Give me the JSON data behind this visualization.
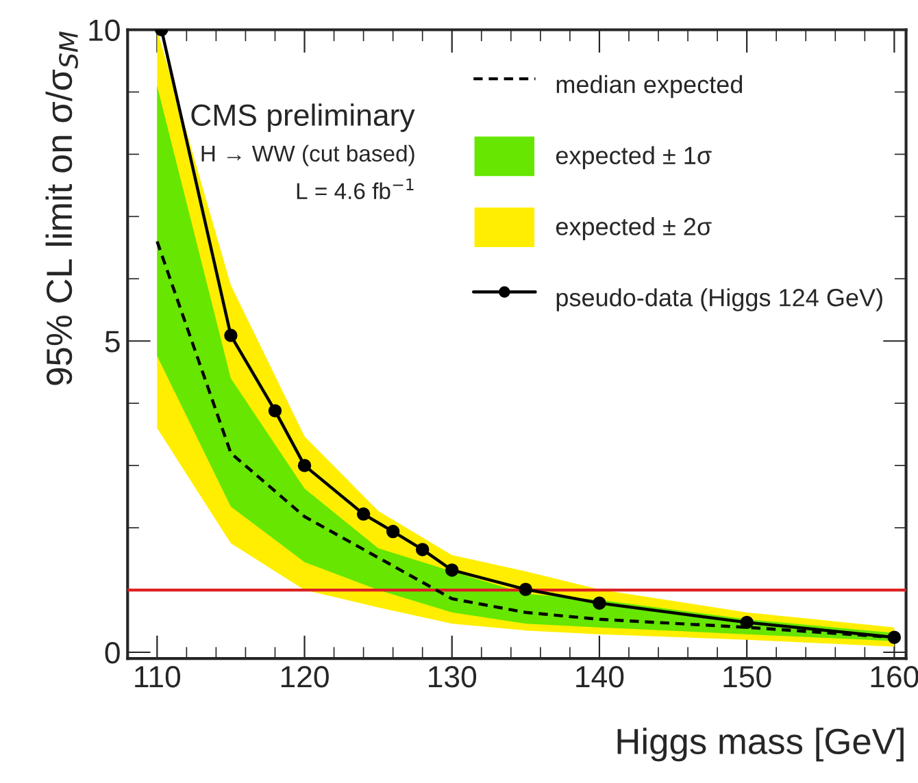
{
  "chart_data": {
    "type": "line",
    "xlabel": "Higgs mass [GeV]",
    "ylabel": "95% CL limit on σ/σ$_{SM}$",
    "xlim": [
      108,
      160.8
    ],
    "ylim": [
      -0.1,
      10
    ],
    "xticks": [
      110,
      120,
      130,
      140,
      150,
      160
    ],
    "yticks": [
      0,
      5,
      10
    ],
    "series": [
      {
        "name": "median expected",
        "color": "#000000",
        "line_style": "dashed",
        "marker": "none",
        "x": [
          110,
          115,
          120,
          125,
          130,
          135,
          140,
          150,
          160
        ],
        "values": [
          6.6,
          3.2,
          2.18,
          1.52,
          0.86,
          0.64,
          0.53,
          0.4,
          0.24
        ]
      },
      {
        "name": "expected ± 1σ",
        "color": "#66e600",
        "x": [
          110,
          115,
          120,
          125,
          130,
          135,
          140,
          150,
          160
        ],
        "values": [
          null,
          null,
          null,
          null,
          null,
          null,
          null,
          null,
          null
        ],
        "lower": [
          4.76,
          2.34,
          1.45,
          1.0,
          0.64,
          0.46,
          0.4,
          0.29,
          0.18
        ],
        "upper": [
          9.1,
          4.4,
          2.63,
          1.67,
          1.3,
          0.94,
          0.84,
          0.53,
          0.31
        ]
      },
      {
        "name": "expected ± 2σ",
        "color": "#ffee00",
        "x": [
          110,
          115,
          120,
          125,
          130,
          135,
          140,
          150,
          160
        ],
        "values": [
          null,
          null,
          null,
          null,
          null,
          null,
          null,
          null,
          null
        ],
        "lower": [
          3.6,
          1.75,
          1.0,
          0.72,
          0.46,
          0.35,
          0.29,
          0.2,
          0.09
        ],
        "upper": [
          10,
          5.9,
          3.47,
          2.27,
          1.56,
          1.3,
          1.01,
          0.64,
          0.4
        ]
      },
      {
        "name": "pseudo-data (Higgs 124 GeV)",
        "color": "#000000",
        "line_style": "solid",
        "marker": "circle",
        "x": [
          110.3,
          115,
          118,
          120,
          124,
          126,
          128,
          130,
          135,
          140,
          150,
          160
        ],
        "values": [
          10,
          5.09,
          3.88,
          3.0,
          2.22,
          1.94,
          1.65,
          1.32,
          1.01,
          0.79,
          0.48,
          0.24
        ]
      }
    ],
    "ref_lines": [
      {
        "axis": "y",
        "value": 1,
        "color": "#dd2222"
      }
    ],
    "annotations": [
      "CMS preliminary",
      "H → WW (cut based)",
      "L = 4.6 fb$^{−1}$"
    ],
    "legend": "top right",
    "grid": false
  }
}
